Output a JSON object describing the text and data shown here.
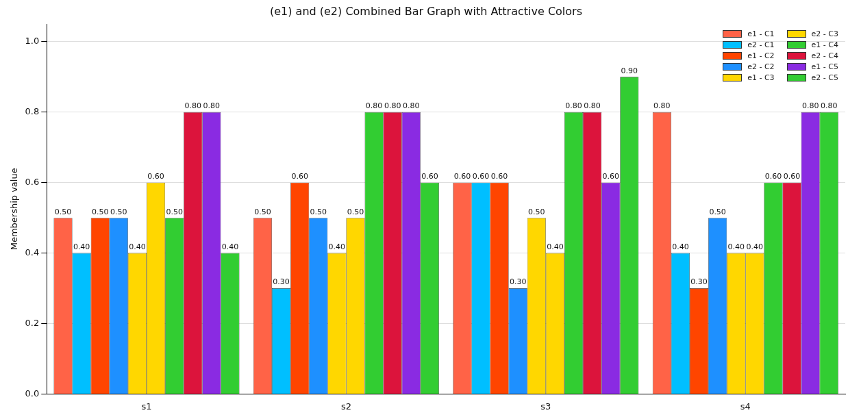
{
  "chart_data": {
    "type": "bar",
    "title": "(e1) and (e2) Combined Bar Graph with Attractive Colors",
    "ylabel": "Membership value",
    "categories": [
      "s1",
      "s2",
      "s3",
      "s4"
    ],
    "series": [
      {
        "name": "e1 - C1",
        "color": "#ff6347",
        "values": [
          0.5,
          0.5,
          0.6,
          0.8
        ],
        "value_labels": [
          "0.50",
          "0.50",
          "0.60",
          "0.80"
        ]
      },
      {
        "name": "e2 - C1",
        "color": "#00bfff",
        "values": [
          0.4,
          0.3,
          0.6,
          0.4
        ],
        "value_labels": [
          "0.40",
          "0.30",
          "0.60",
          "0.40"
        ]
      },
      {
        "name": "e1 - C2",
        "color": "#ff4500",
        "values": [
          0.5,
          0.6,
          0.6,
          0.3
        ],
        "value_labels": [
          "0.50",
          "0.60",
          "0.60",
          "0.30"
        ]
      },
      {
        "name": "e2 - C2",
        "color": "#1e90ff",
        "values": [
          0.5,
          0.5,
          0.3,
          0.5
        ],
        "value_labels": [
          "0.50",
          "0.50",
          "0.30",
          "0.50"
        ]
      },
      {
        "name": "e1 - C3",
        "color": "#ffd700",
        "values": [
          0.4,
          0.4,
          0.5,
          0.4
        ],
        "value_labels": [
          "0.40",
          "0.40",
          "0.50",
          "0.40"
        ]
      },
      {
        "name": "e2 - C3",
        "color": "#ffd700",
        "values": [
          0.6,
          0.5,
          0.4,
          0.4
        ],
        "value_labels": [
          "0.60",
          "0.50",
          "0.40",
          "0.40"
        ]
      },
      {
        "name": "e1 - C4",
        "color": "#32cd32",
        "values": [
          0.5,
          0.8,
          0.8,
          0.6
        ],
        "value_labels": [
          "0.50",
          "0.80",
          "0.80",
          "0.60"
        ]
      },
      {
        "name": "e2 - C4",
        "color": "#dc143c",
        "values": [
          0.8,
          0.8,
          0.8,
          0.6
        ],
        "value_labels": [
          "0.80",
          "0.80",
          "0.80",
          "0.60"
        ]
      },
      {
        "name": "e1 - C5",
        "color": "#8a2be2",
        "values": [
          0.8,
          0.8,
          0.6,
          0.8
        ],
        "value_labels": [
          "0.80",
          "0.80",
          "0.60",
          "0.80"
        ]
      },
      {
        "name": "e2 - C5",
        "color": "#32cd32",
        "values": [
          0.4,
          0.6,
          0.9,
          0.8
        ],
        "value_labels": [
          "0.40",
          "0.60",
          "0.90",
          "0.80"
        ]
      }
    ],
    "ylim": [
      0,
      1.05
    ],
    "yticks": [
      {
        "value": 0,
        "label": "0.0"
      },
      {
        "value": 0.2,
        "label": "0.2"
      },
      {
        "value": 0.4,
        "label": "0.4"
      },
      {
        "value": 0.6,
        "label": "0.6"
      },
      {
        "value": 0.8,
        "label": "0.8"
      },
      {
        "value": 1,
        "label": "1.0"
      }
    ],
    "grid": "y",
    "legend": "top right"
  }
}
